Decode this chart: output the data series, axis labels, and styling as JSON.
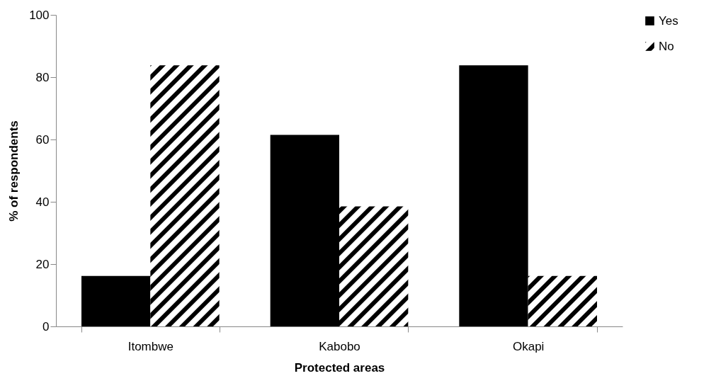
{
  "chart_data": {
    "type": "bar",
    "xlabel": "Protected areas",
    "ylabel": "% of respondents",
    "categories": [
      "Itombwe",
      "Kabobo",
      "Okapi"
    ],
    "series": [
      {
        "name": "Yes",
        "color": "#000000",
        "values": [
          16.2,
          61.5,
          83.8
        ]
      },
      {
        "name": "No",
        "color": "#000000",
        "values": [
          83.8,
          38.5,
          16.2
        ]
      }
    ],
    "ylim": [
      0,
      100
    ],
    "yticks": [
      0,
      20,
      40,
      60,
      80,
      100
    ],
    "grid": false,
    "legend": "right"
  }
}
